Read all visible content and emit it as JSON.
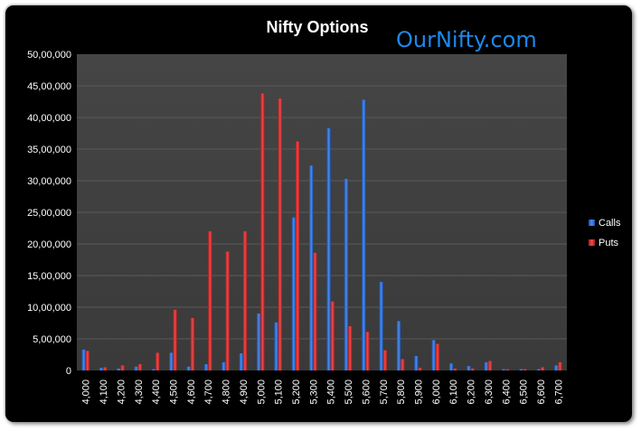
{
  "chart_data": {
    "type": "bar",
    "title": "Nifty Options",
    "watermark": "OurNifty.com",
    "xlabel": "",
    "ylabel": "",
    "ylim": [
      0,
      5000000
    ],
    "y_ticks": [
      "0",
      "5,00,000",
      "10,00,000",
      "15,00,000",
      "20,00,000",
      "25,00,000",
      "30,00,000",
      "35,00,000",
      "40,00,000",
      "45,00,000",
      "50,00,000"
    ],
    "grid": true,
    "legend_position": "right",
    "categories": [
      "4,000",
      "4,100",
      "4,200",
      "4,300",
      "4,400",
      "4,500",
      "4,600",
      "4,700",
      "4,800",
      "4,900",
      "5,000",
      "5,100",
      "5,200",
      "5,300",
      "5,400",
      "5,500",
      "5,600",
      "5,700",
      "5,800",
      "5,900",
      "6,000",
      "6,100",
      "6,200",
      "6,300",
      "6,400",
      "6,500",
      "6,600",
      "6,700"
    ],
    "series": [
      {
        "name": "Calls",
        "color": "#2e6fd0",
        "values": [
          330000,
          40000,
          30000,
          60000,
          20000,
          280000,
          60000,
          100000,
          130000,
          270000,
          900000,
          760000,
          2420000,
          3240000,
          3830000,
          3030000,
          4280000,
          1400000,
          780000,
          230000,
          480000,
          110000,
          70000,
          130000,
          20000,
          20000,
          20000,
          80000
        ]
      },
      {
        "name": "Puts",
        "color": "#d63232",
        "values": [
          310000,
          50000,
          80000,
          100000,
          280000,
          960000,
          830000,
          2200000,
          1880000,
          2200000,
          4380000,
          4300000,
          3620000,
          1860000,
          1090000,
          700000,
          610000,
          320000,
          180000,
          40000,
          420000,
          30000,
          30000,
          150000,
          20000,
          20000,
          50000,
          130000
        ]
      }
    ]
  }
}
